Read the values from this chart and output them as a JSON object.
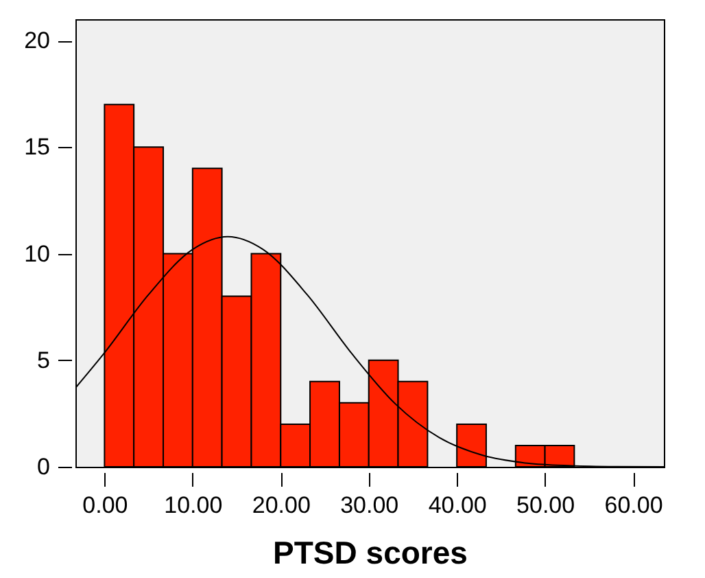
{
  "chart_data": {
    "type": "histogram",
    "xlabel": "PTSD scores",
    "bins": [
      0,
      3.33,
      6.67,
      10,
      13.33,
      16.67,
      20,
      23.33,
      26.67,
      30,
      33.33,
      36.67,
      40,
      43.33,
      46.67,
      50,
      53.33
    ],
    "values": [
      17,
      15,
      10,
      14,
      8,
      10,
      2,
      4,
      3,
      5,
      4,
      0,
      2,
      0,
      1,
      1
    ],
    "color": "#ff2200",
    "series": [
      {
        "type": "line",
        "color": "#000000",
        "x": [
          -3.3,
          0,
          5,
          10,
          14,
          18,
          23,
          28,
          33,
          38,
          43,
          48,
          53,
          58,
          63.5
        ],
        "values": [
          3.7,
          5.35,
          8.08,
          10.2,
          10.8,
          10.2,
          8.08,
          5.35,
          2.96,
          1.37,
          0.53,
          0.17,
          0.05,
          0.01,
          0
        ]
      }
    ],
    "xlim": [
      -3.3,
      63.5
    ],
    "ylim": [
      0,
      21
    ],
    "xticks": [
      {
        "value": 0,
        "label": "0.00"
      },
      {
        "value": 10,
        "label": "10.00"
      },
      {
        "value": 20,
        "label": "20.00"
      },
      {
        "value": 30,
        "label": "30.00"
      },
      {
        "value": 40,
        "label": "40.00"
      },
      {
        "value": 50,
        "label": "50.00"
      },
      {
        "value": 60,
        "label": "60.00"
      }
    ],
    "yticks": [
      0,
      5,
      10,
      15,
      20
    ],
    "grid": false
  }
}
